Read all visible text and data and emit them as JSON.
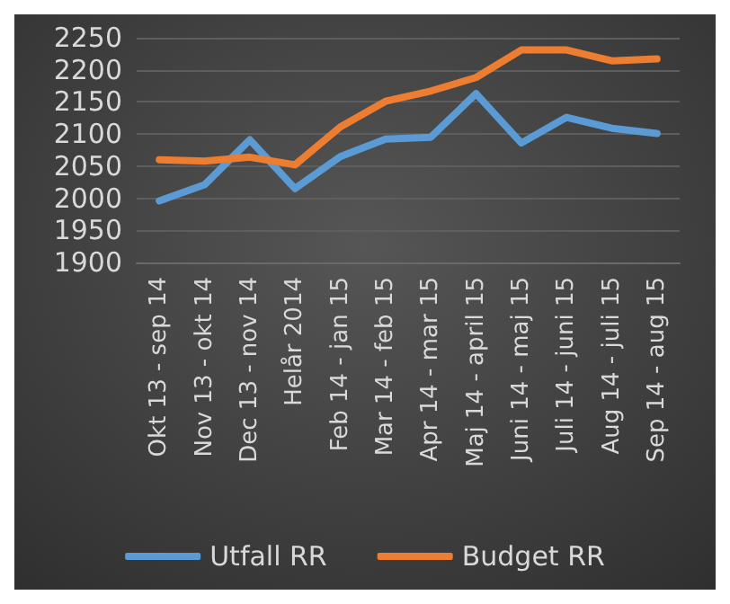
{
  "chart_data": {
    "type": "line",
    "categories": [
      "Okt 13 - sep 14",
      "Nov 13 - okt 14",
      "Dec 13 - nov 14",
      "Helår 2014",
      "Feb 14 - jan 15",
      "Mar 14 - feb 15",
      "Apr 14 - mar 15",
      "Maj 14 - april 15",
      "Juni 14 - maj 15",
      "Juli 14 - juni 15",
      "Aug 14 - juli 15",
      "Sep 14 - aug 15"
    ],
    "series": [
      {
        "name": "Utfall RR",
        "color": "#5b9bd5",
        "values": [
          1996,
          2021,
          2091,
          2015,
          2065,
          2092,
          2095,
          2163,
          2086,
          2126,
          2109,
          2101
        ]
      },
      {
        "name": "Budget RR",
        "color": "#ed7d31",
        "values": [
          2060,
          2058,
          2064,
          2052,
          2111,
          2151,
          2167,
          2188,
          2231,
          2231,
          2214,
          2217
        ]
      }
    ],
    "ylim": [
      1900,
      2250
    ],
    "yticks": [
      1900,
      1950,
      2000,
      2050,
      2100,
      2150,
      2200,
      2250
    ],
    "grid": "y",
    "legend": "bottom",
    "marker": "none",
    "line_style": "solid"
  }
}
